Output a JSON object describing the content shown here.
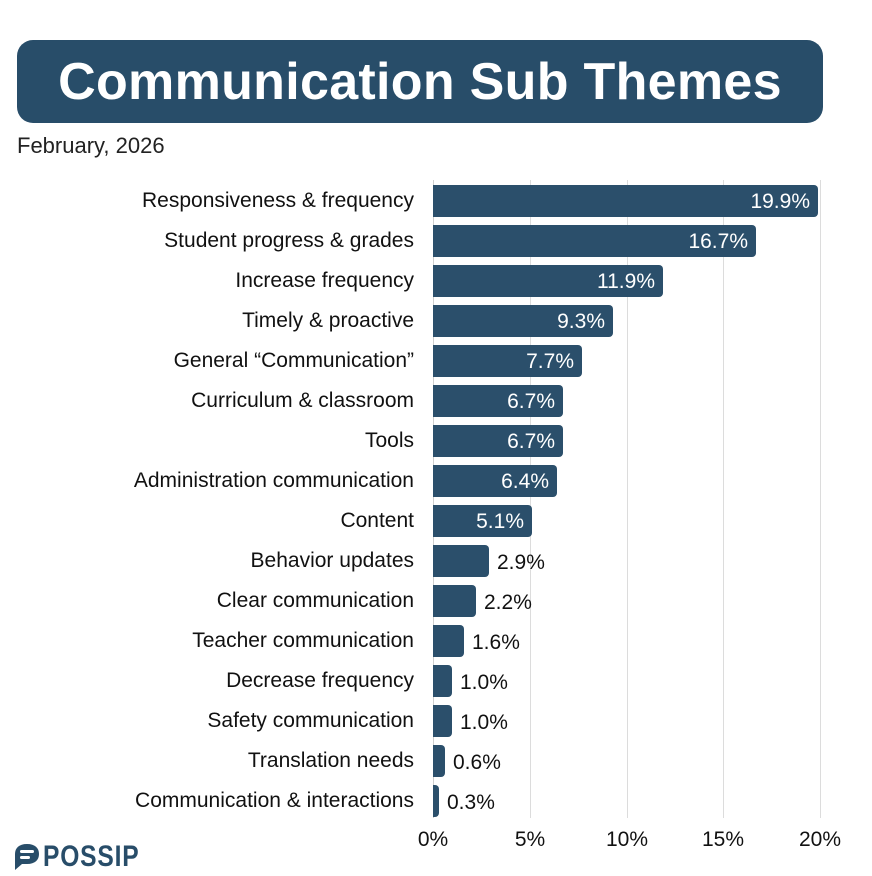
{
  "header": {
    "title": "Communication Sub Themes",
    "subtitle": "February, 2026"
  },
  "brand": {
    "logo_text": "POSSIP",
    "logo_icon": "speech-bubble-icon",
    "color": "#284d69"
  },
  "colors": {
    "bar": "#2b4f6b",
    "title_background": "#284d69",
    "gridline": "#dcdcdc"
  },
  "chart_data": {
    "type": "bar",
    "orientation": "horizontal",
    "title": "Communication Sub Themes",
    "subtitle": "February, 2026",
    "xlabel": "",
    "ylabel": "",
    "xlim": [
      0,
      20
    ],
    "x_ticks": [
      "0%",
      "5%",
      "10%",
      "15%",
      "20%"
    ],
    "x_tick_values": [
      0,
      5,
      10,
      15,
      20
    ],
    "grid": "vertical",
    "legend": "none",
    "categories": [
      "Responsiveness & frequency",
      "Student progress & grades",
      "Increase frequency",
      "Timely & proactive",
      "General “Communication”",
      "Curriculum & classroom",
      "Tools",
      "Administration communication",
      "Content",
      "Behavior updates",
      "Clear communication",
      "Teacher communication",
      "Decrease frequency",
      "Safety communication",
      "Translation needs",
      "Communication & interactions"
    ],
    "values": [
      19.9,
      16.7,
      11.9,
      9.3,
      7.7,
      6.7,
      6.7,
      6.4,
      5.1,
      2.9,
      2.2,
      1.6,
      1.0,
      1.0,
      0.6,
      0.3
    ],
    "value_labels": [
      "19.9%",
      "16.7%",
      "11.9%",
      "9.3%",
      "7.7%",
      "6.7%",
      "6.7%",
      "6.4%",
      "5.1%",
      "2.9%",
      "2.2%",
      "1.6%",
      "1.0%",
      "1.0%",
      "0.6%",
      "0.3%"
    ]
  }
}
